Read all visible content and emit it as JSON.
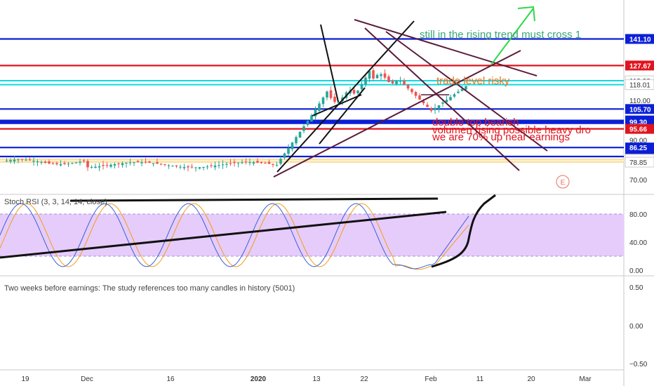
{
  "chart_data": [
    {
      "type": "candlestick",
      "ylim": [
        65,
        145
      ],
      "yticks": [
        "70.00",
        "80.00",
        "90.00",
        "100.00",
        "110.00",
        "120.00"
      ],
      "price_levels": [
        {
          "value": 141.1,
          "label": "141.10",
          "color": "#0b1fd6",
          "lines": 1,
          "tag": true
        },
        {
          "value": 127.67,
          "label": "127.67",
          "color": "#e0141e",
          "lines": 1,
          "tag": true
        },
        {
          "value": 119.98,
          "label": "119.98",
          "color": "#12d8e0",
          "lines": 1,
          "tag": false
        },
        {
          "value": 118.01,
          "label": "118.01",
          "color": "#12d8e0",
          "lines": 1,
          "tag": false
        },
        {
          "value": 105.7,
          "label": "105.70",
          "color": "#0b1fd6",
          "lines": 1,
          "tag": true
        },
        {
          "value": 99.91,
          "label": "99.91",
          "color": "#0b1fd6",
          "lines": 2,
          "tag": true
        },
        {
          "value": 99.3,
          "label": "99.30",
          "color": "#0b1fd6",
          "lines": 1,
          "tag": true
        },
        {
          "value": 95.66,
          "label": "95.66",
          "color": "#e0141e",
          "lines": 1,
          "tag": true
        },
        {
          "value": 86.25,
          "label": "86.25",
          "color": "#0b1fd6",
          "lines": 1,
          "tag": true
        },
        {
          "value": 81.69,
          "label": "81.69",
          "color": "#0b1fd6",
          "lines": 1,
          "tag": true
        },
        {
          "value": 80.34,
          "label": "80.34",
          "color": "#f7d98c",
          "lines": 1,
          "tag": true
        },
        {
          "value": 78.85,
          "label": "78.85",
          "color": "#f7d98c",
          "lines": 1,
          "tag": true
        }
      ],
      "annotations": [
        {
          "text": "still in the rising trend  must cross 1",
          "color": "#3aa77a"
        },
        {
          "text": "trade level risky",
          "color": "#e8751a"
        },
        {
          "text": "double top bearish",
          "color": "#e0141e"
        },
        {
          "text": "volumen rising possible heavy dro",
          "color": "#e0141e"
        },
        {
          "text": "we are 70% up near earnings",
          "color": "#e0141e"
        }
      ],
      "earnings_marker": "E"
    },
    {
      "type": "line",
      "title": "Stoch RSI (3, 3, 14, 14, close)",
      "ylim": [
        -5,
        100
      ],
      "yticks": [
        "80.00",
        "40.00",
        "0.00"
      ],
      "band": [
        20,
        80
      ],
      "series": [
        {
          "color": "#3a5fd9"
        },
        {
          "color": "#f39c12"
        }
      ]
    },
    {
      "type": "line",
      "message": "Two weeks before earnings: The study references too many candles in history (5001)",
      "yticks": [
        "0.50",
        "0.00",
        "−0.50"
      ]
    }
  ],
  "xaxis": {
    "ticks": [
      "19",
      "Dec",
      "16",
      "2020",
      "13",
      "22",
      "Feb",
      "11",
      "20",
      "Mar"
    ]
  },
  "colors": {
    "up": "#26a69a",
    "down": "#ef5350",
    "trend": "#5a1a3a"
  }
}
